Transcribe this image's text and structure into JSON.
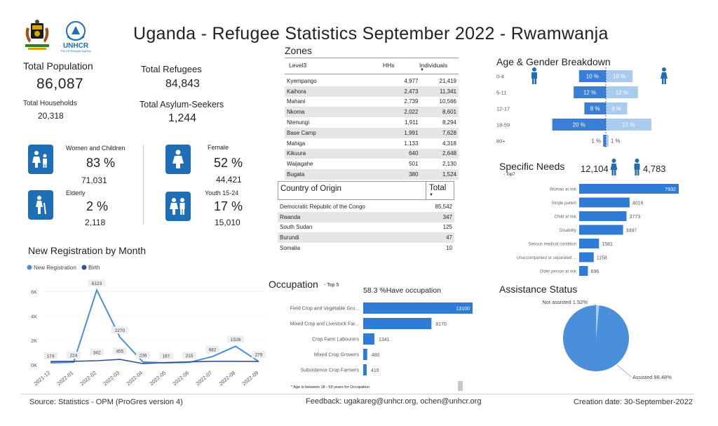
{
  "title": "Uganda - Refugee Statistics September 2022 - Rwamwanja",
  "logos": {
    "unhcr_text": "UNHCR",
    "unhcr_sub": "The UN Refugee Agency"
  },
  "kpis": {
    "total_population_label": "Total Population",
    "total_population": "86,087",
    "total_refugees_label": "Total Refugees",
    "total_refugees": "84,843",
    "total_households_label": "Total Households",
    "total_households": "20,318",
    "asylum_label": "Total Asylum-Seekers",
    "asylum": "1,244"
  },
  "groups": [
    {
      "label": "Women and Children",
      "pct": "83 %",
      "count": "71,031",
      "icon": "women-children-icon"
    },
    {
      "label": "Elderly",
      "pct": "2 %",
      "count": "2,118",
      "icon": "elderly-icon"
    },
    {
      "label": "Female",
      "pct": "52 %",
      "count": "44,421",
      "icon": "female-icon"
    },
    {
      "label": "Youth 15-24",
      "pct": "17 %",
      "count": "15,010",
      "icon": "youth-icon"
    }
  ],
  "zones": {
    "title": "Zones",
    "headers": [
      "Level3",
      "HHs",
      "Individuals"
    ],
    "rows": [
      [
        "Kyempango",
        "4,977",
        "21,419"
      ],
      [
        "Kaihora",
        "2,473",
        "11,341"
      ],
      [
        "Mahani",
        "2,739",
        "10,566"
      ],
      [
        "Nkoma",
        "2,022",
        "8,601"
      ],
      [
        "Ntenungi",
        "1,911",
        "8,294"
      ],
      [
        "Base Camp",
        "1,991",
        "7,628"
      ],
      [
        "Mahiga",
        "1,133",
        "4,318"
      ],
      [
        "Kikuura",
        "640",
        "2,648"
      ],
      [
        "Waijagahe",
        "501",
        "2,130"
      ],
      [
        "Bugata",
        "380",
        "1,524"
      ]
    ]
  },
  "origin": {
    "headers": [
      "Country of Origin",
      "Total"
    ],
    "rows": [
      [
        "Democratic Republic of the Congo",
        "85,542"
      ],
      [
        "Rwanda",
        "347"
      ],
      [
        "South Sudan",
        "125"
      ],
      [
        "Burundi",
        "47"
      ],
      [
        "Somalia",
        "10"
      ]
    ]
  },
  "footer": {
    "source": "Source: Statistics - OPM (ProGres version 4)",
    "feedback": "Feedback: ugakareg@unhcr.org, ochen@unhcr.org",
    "created": "Creation date: 30-September-2022"
  },
  "chart_data": [
    {
      "type": "line",
      "title": "New Registration by Month",
      "x": [
        "2021-12",
        "2022-01",
        "2022-02",
        "2022-03",
        "2022-04",
        "2022-05",
        "2022-06",
        "2022-07",
        "2022-08",
        "2022-09"
      ],
      "series": [
        {
          "name": "New Registration",
          "values": [
            174,
            224,
            6123,
            2270,
            236,
            167,
            215,
            682,
            1528,
            279
          ],
          "color": "#4a8fd9"
        },
        {
          "name": "Birth",
          "values": [
            280,
            300,
            342,
            455,
            110,
            200,
            250,
            300,
            300,
            282
          ],
          "color": "#3b4e8c"
        }
      ],
      "labels": [
        "174",
        "224",
        "6123",
        "2270",
        "236",
        "167",
        "215",
        "682",
        "1528",
        "279",
        "342",
        "455"
      ],
      "yticks": [
        "0K",
        "2K",
        "4K",
        "6K"
      ],
      "ylim": [
        0,
        7000
      ],
      "legend": "top-left"
    },
    {
      "type": "bar",
      "title": "Age & Gender Breakdown",
      "categories": [
        "0-4",
        "5-11",
        "12-17",
        "18-59",
        "60+"
      ],
      "series": [
        {
          "name": "male",
          "values": [
            10,
            12,
            8,
            20,
            1
          ],
          "labels": [
            "10 %",
            "12 %",
            "8 %",
            "20 %",
            "1 %"
          ],
          "color": "#3a7fd5"
        },
        {
          "name": "female",
          "values": [
            10,
            12,
            8,
            17,
            1
          ],
          "labels": [
            "10 %",
            "12 %",
            "8 %",
            "17 %",
            "1 %"
          ],
          "color": "#a9cbee"
        }
      ]
    },
    {
      "type": "bar",
      "title": "Specific Needs",
      "subtitle": "- Top7",
      "female_total": "12,104",
      "male_total": "4,783",
      "categories": [
        "Woman at risk",
        "Single parent",
        "Child at risk",
        "Disability",
        "Serious medical condition",
        "Unaccompanied or separated ...",
        "Older person at risk"
      ],
      "values": [
        7932,
        4016,
        3773,
        3497,
        1581,
        1158,
        696
      ],
      "labels": [
        "7932",
        "4016",
        "3773",
        "3497",
        "1581",
        "1158",
        "696"
      ]
    },
    {
      "type": "bar",
      "title": "Occupation",
      "subtitle": "- Top 5",
      "headline": "58.3 %Have occupation",
      "categories": [
        "Field Crop and Vegetable Gro...",
        "Mixed Crop and Livestock Far...",
        "Crop Farm Labourers",
        "Mixed Crop Growers",
        "Subsistence Crop Farmers"
      ],
      "values": [
        13100,
        8170,
        1341,
        480,
        416
      ],
      "labels": [
        "13100",
        "8170",
        "1341",
        "480",
        "416"
      ],
      "note": "* Age is between 18 - 59 years for Occupation"
    },
    {
      "type": "pie",
      "title": "Assistance Status",
      "slices": [
        {
          "label": "Assisted 98.48%",
          "value": 98.48,
          "color": "#4a8fd9"
        },
        {
          "label": "Not assisted 1.52%",
          "value": 1.52,
          "color": "#a9cbee"
        }
      ]
    }
  ]
}
